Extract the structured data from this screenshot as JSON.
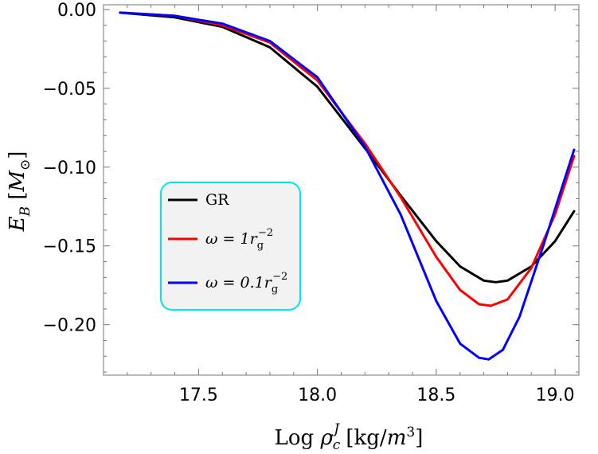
{
  "chart_data": {
    "type": "line",
    "xlabel": "Log ρ_c^J [kg/m^3]",
    "ylabel": "E_B [M_⊙]",
    "xlim": [
      17.1,
      19.1
    ],
    "ylim": [
      -0.232,
      0.003
    ],
    "xticks": [
      "17.5",
      "18.0",
      "18.5",
      "19.0"
    ],
    "yticks": [
      "0.00",
      "−0.05",
      "−0.10",
      "−0.15",
      "−0.20"
    ],
    "grid": false,
    "legend_position": "center-left",
    "legend_frame_color": "#00e5ee",
    "legend_bg": "#f2f2f2",
    "series": [
      {
        "name": "GR",
        "color": "#000000",
        "x": [
          17.17,
          17.4,
          17.6,
          17.8,
          18.0,
          18.2,
          18.35,
          18.5,
          18.6,
          18.7,
          18.75,
          18.8,
          18.9,
          19.0,
          19.08
        ],
        "y": [
          -0.002,
          -0.005,
          -0.011,
          -0.024,
          -0.049,
          -0.088,
          -0.118,
          -0.147,
          -0.163,
          -0.172,
          -0.173,
          -0.172,
          -0.163,
          -0.147,
          -0.128
        ]
      },
      {
        "name": "ω = 1r_g^−2",
        "color": "#ff0000",
        "x": [
          17.17,
          17.4,
          17.6,
          17.8,
          18.0,
          18.2,
          18.35,
          18.5,
          18.6,
          18.68,
          18.73,
          18.8,
          18.9,
          19.0,
          19.08
        ],
        "y": [
          -0.002,
          -0.004,
          -0.01,
          -0.021,
          -0.045,
          -0.085,
          -0.119,
          -0.157,
          -0.178,
          -0.187,
          -0.188,
          -0.184,
          -0.164,
          -0.13,
          -0.093
        ]
      },
      {
        "name": "ω = 0.1r_g^−2",
        "color": "#0000ff",
        "x": [
          17.17,
          17.4,
          17.6,
          17.8,
          18.0,
          18.2,
          18.35,
          18.5,
          18.6,
          18.68,
          18.72,
          18.78,
          18.85,
          18.95,
          19.08
        ],
        "y": [
          -0.002,
          -0.004,
          -0.009,
          -0.02,
          -0.043,
          -0.087,
          -0.13,
          -0.185,
          -0.212,
          -0.221,
          -0.222,
          -0.216,
          -0.195,
          -0.15,
          -0.089
        ]
      }
    ]
  }
}
